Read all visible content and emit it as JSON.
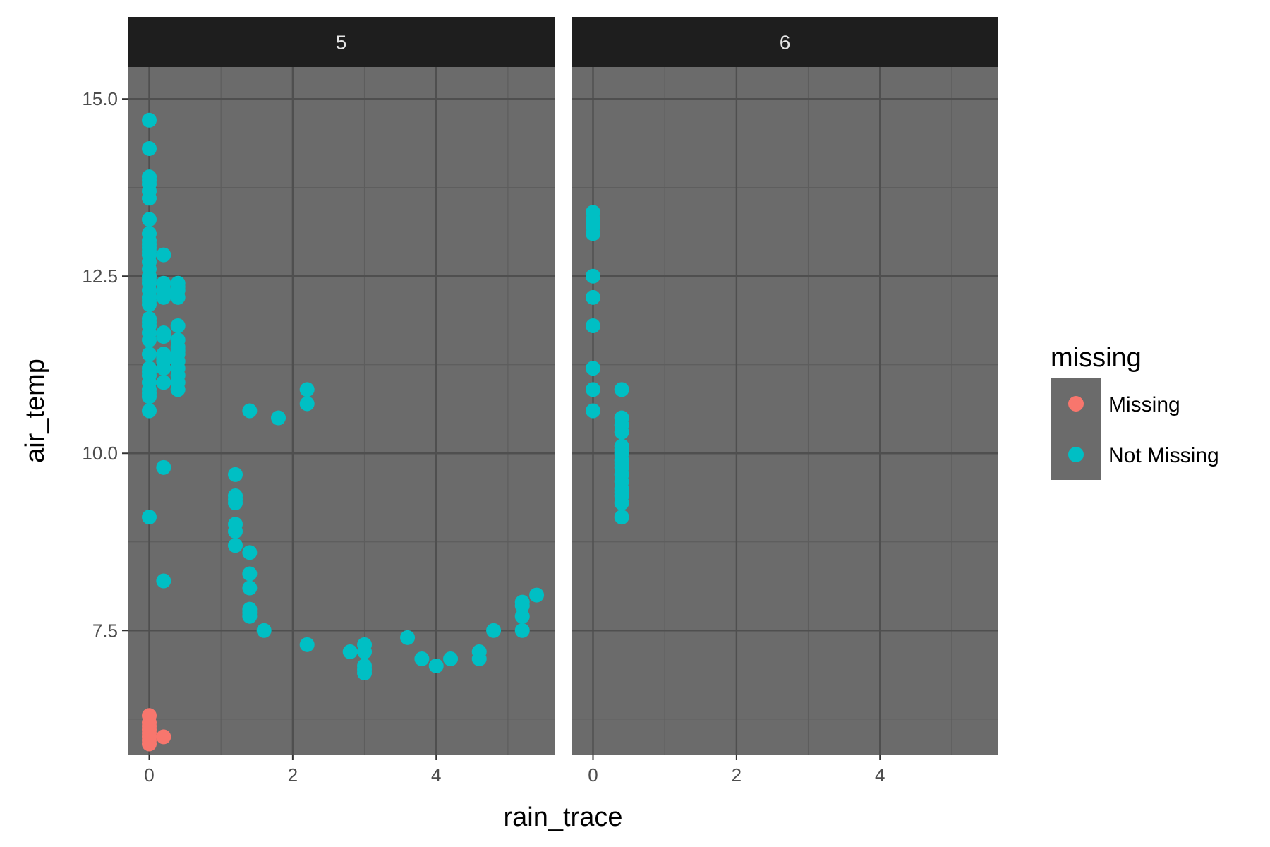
{
  "chart_data": {
    "type": "scatter",
    "facet_variable": "month",
    "xlabel": "rain_trace",
    "ylabel": "air_temp",
    "xlim": [
      -0.3,
      5.65
    ],
    "ylim": [
      5.75,
      15.45
    ],
    "x_ticks": [
      0,
      2,
      4
    ],
    "x_tick_labels": [
      "0",
      "2",
      "4"
    ],
    "y_ticks": [
      7.5,
      10.0,
      12.5,
      15.0
    ],
    "y_tick_labels": [
      "7.5",
      "10.0",
      "12.5",
      "15.0"
    ],
    "grid": true,
    "legend": {
      "title": "missing",
      "position": "right",
      "entries": [
        {
          "label": "Missing",
          "color": "#F8766D"
        },
        {
          "label": "Not Missing",
          "color": "#00BFC4"
        }
      ]
    },
    "colors": {
      "Missing": "#F8766D",
      "Not Missing": "#00BFC4",
      "panel_background": "#6b6b6b",
      "strip_background": "#1e1e1e"
    },
    "panels": [
      {
        "label": "5",
        "series": [
          {
            "name": "Missing",
            "x": [
              0,
              0,
              0,
              0,
              0,
              0,
              0,
              0,
              0.2
            ],
            "y": [
              6.3,
              6.2,
              6.1,
              6.05,
              6.0,
              5.95,
              5.9,
              6.15,
              6.0
            ]
          },
          {
            "name": "Not Missing",
            "x": [
              0,
              0,
              0,
              0,
              0,
              0,
              0,
              0,
              0,
              0,
              0,
              0,
              0,
              0,
              0,
              0,
              0,
              0,
              0,
              0,
              0,
              0,
              0,
              0,
              0,
              0,
              0,
              0,
              0,
              0,
              0,
              0,
              0,
              0,
              0,
              0,
              0,
              0,
              0.2,
              0.2,
              0.2,
              0.2,
              0.2,
              0.2,
              0.2,
              0.2,
              0.2,
              0.2,
              0.2,
              0.2,
              0.2,
              0.2,
              0.4,
              0.4,
              0.4,
              0.4,
              0.4,
              0.4,
              0.4,
              0.4,
              0.4,
              0.4,
              0.4,
              0.4,
              0.4,
              0.4,
              1.2,
              1.2,
              1.2,
              1.2,
              1.2,
              1.2,
              1.2,
              1.4,
              1.4,
              1.4,
              1.4,
              1.4,
              1.4,
              1.4,
              1.6,
              1.8,
              2.2,
              2.2,
              2.2,
              2.8,
              3.0,
              3.0,
              3.0,
              3.0,
              3.0,
              3.6,
              3.8,
              4.0,
              4.2,
              4.6,
              4.6,
              4.8,
              5.2,
              5.2,
              5.2,
              5.2,
              5.4
            ],
            "y": [
              14.7,
              14.3,
              13.9,
              13.8,
              13.7,
              13.6,
              13.3,
              13.1,
              13.0,
              12.9,
              12.8,
              12.7,
              12.6,
              12.5,
              12.4,
              12.3,
              12.2,
              12.1,
              11.9,
              11.8,
              11.7,
              11.6,
              11.4,
              11.2,
              11.1,
              11.0,
              10.9,
              10.8,
              10.6,
              9.1,
              12.95,
              12.85,
              12.45,
              12.15,
              11.85,
              11.15,
              10.85,
              13.85,
              12.8,
              12.4,
              12.3,
              12.2,
              11.7,
              11.4,
              11.3,
              11.2,
              11.0,
              9.8,
              8.2,
              11.35,
              12.25,
              11.65,
              12.4,
              12.3,
              12.2,
              11.8,
              11.6,
              11.5,
              11.4,
              11.3,
              11.2,
              11.1,
              11.0,
              10.9,
              12.35,
              11.45,
              9.7,
              9.4,
              9.3,
              9.0,
              8.9,
              8.7,
              9.35,
              10.6,
              8.6,
              8.3,
              8.1,
              7.8,
              7.7,
              7.75,
              7.5,
              10.5,
              10.9,
              10.7,
              7.3,
              7.2,
              7.3,
              7.2,
              7.0,
              6.9,
              6.95,
              7.4,
              7.1,
              7.0,
              7.1,
              7.2,
              7.1,
              7.5,
              7.9,
              7.7,
              7.5,
              7.85,
              8.0
            ]
          }
        ]
      },
      {
        "label": "6",
        "series": [
          {
            "name": "Missing",
            "x": [],
            "y": []
          },
          {
            "name": "Not Missing",
            "x": [
              0,
              0,
              0,
              0,
              0,
              0,
              0,
              0,
              0,
              0,
              0,
              0.4,
              0.4,
              0.4,
              0.4,
              0.4,
              0.4,
              0.4,
              0.4,
              0.4,
              0.4,
              0.4,
              0.4,
              0.4,
              0.4,
              0.4,
              0.4,
              0.4
            ],
            "y": [
              13.4,
              13.3,
              13.2,
              13.1,
              12.5,
              12.2,
              11.8,
              11.2,
              10.9,
              10.6,
              13.25,
              10.9,
              10.5,
              10.3,
              10.1,
              10.0,
              9.9,
              9.8,
              9.7,
              9.6,
              9.5,
              9.4,
              9.3,
              9.1,
              10.4,
              9.85,
              9.45,
              10.05
            ]
          }
        ]
      }
    ]
  }
}
